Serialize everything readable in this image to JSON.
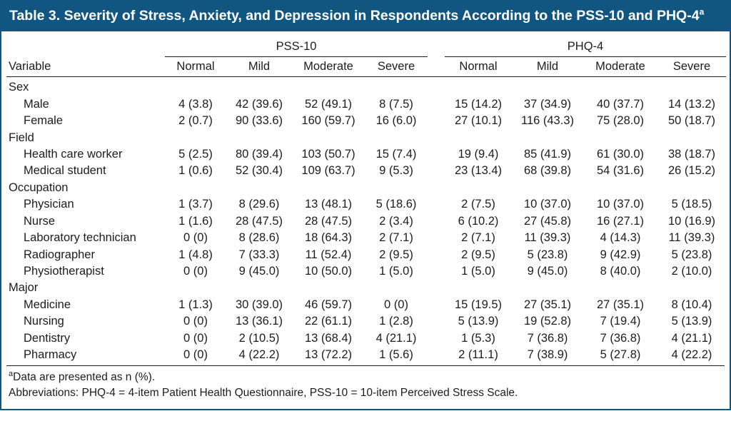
{
  "title": "Table 3. Severity of Stress, Anxiety, and Depression in Respondents According to the PSS-10 and PHQ-4",
  "title_superscript": "a",
  "table": {
    "group_headers": [
      "PSS-10",
      "PHQ-4"
    ],
    "variable_header": "Variable",
    "sub_headers": [
      "Normal",
      "Mild",
      "Moderate",
      "Severe",
      "Normal",
      "Mild",
      "Moderate",
      "Severe"
    ],
    "sections": [
      {
        "label": "Sex",
        "rows": [
          {
            "label": "Male",
            "values": [
              "4 (3.8)",
              "42 (39.6)",
              "52 (49.1)",
              "8 (7.5)",
              "15 (14.2)",
              "37 (34.9)",
              "40 (37.7)",
              "14 (13.2)"
            ]
          },
          {
            "label": "Female",
            "values": [
              "2 (0.7)",
              "90 (33.6)",
              "160 (59.7)",
              "16 (6.0)",
              "27 (10.1)",
              "116 (43.3)",
              "75 (28.0)",
              "50 (18.7)"
            ]
          }
        ]
      },
      {
        "label": "Field",
        "rows": [
          {
            "label": "Health care worker",
            "values": [
              "5 (2.5)",
              "80 (39.4)",
              "103 (50.7)",
              "15 (7.4)",
              "19 (9.4)",
              "85 (41.9)",
              "61 (30.0)",
              "38 (18.7)"
            ]
          },
          {
            "label": "Medical student",
            "values": [
              "1 (0.6)",
              "52 (30.4)",
              "109 (63.7)",
              "9 (5.3)",
              "23 (13.4)",
              "68 (39.8)",
              "54 (31.6)",
              "26 (15.2)"
            ]
          }
        ]
      },
      {
        "label": "Occupation",
        "rows": [
          {
            "label": "Physician",
            "values": [
              "1 (3.7)",
              "8 (29.6)",
              "13 (48.1)",
              "5 (18.6)",
              "2 (7.5)",
              "10 (37.0)",
              "10 (37.0)",
              "5 (18.5)"
            ]
          },
          {
            "label": "Nurse",
            "values": [
              "1 (1.6)",
              "28 (47.5)",
              "28 (47.5)",
              "2 (3.4)",
              "6 (10.2)",
              "27 (45.8)",
              "16 (27.1)",
              "10 (16.9)"
            ]
          },
          {
            "label": "Laboratory technician",
            "values": [
              "0 (0)",
              "8 (28.6)",
              "18 (64.3)",
              "2 (7.1)",
              "2 (7.1)",
              "11 (39.3)",
              "4 (14.3)",
              "11 (39.3)"
            ]
          },
          {
            "label": "Radiographer",
            "values": [
              "1 (4.8)",
              "7 (33.3)",
              "11 (52.4)",
              "2 (9.5)",
              "2 (9.5)",
              "5 (23.8)",
              "9 (42.9)",
              "5 (23.8)"
            ]
          },
          {
            "label": "Physiotherapist",
            "values": [
              "0 (0)",
              "9 (45.0)",
              "10 (50.0)",
              "1 (5.0)",
              "1 (5.0)",
              "9 (45.0)",
              "8 (40.0)",
              "2 (10.0)"
            ]
          }
        ]
      },
      {
        "label": "Major",
        "rows": [
          {
            "label": "Medicine",
            "values": [
              "1 (1.3)",
              "30 (39.0)",
              "46 (59.7)",
              "0 (0)",
              "15 (19.5)",
              "27 (35.1)",
              "27 (35.1)",
              "8 (10.4)"
            ]
          },
          {
            "label": "Nursing",
            "values": [
              "0 (0)",
              "13 (36.1)",
              "22 (61.1)",
              "1 (2.8)",
              "5 (13.9)",
              "19 (52.8)",
              "7 (19.4)",
              "5 (13.9)"
            ]
          },
          {
            "label": "Dentistry",
            "values": [
              "0 (0)",
              "2 (10.5)",
              "13 (68.4)",
              "4 (21.1)",
              "1 (5.3)",
              "7 (36.8)",
              "7 (36.8)",
              "4 (21.1)"
            ]
          },
          {
            "label": "Pharmacy",
            "values": [
              "0 (0)",
              "4 (22.2)",
              "13 (72.2)",
              "1 (5.6)",
              "2 (11.1)",
              "7 (38.9)",
              "5 (27.8)",
              "4 (22.2)"
            ]
          }
        ]
      }
    ]
  },
  "footnotes": {
    "note_superscript": "a",
    "note_text": "Data are presented as n (%).",
    "abbreviations": "Abbreviations: PHQ-4 = 4-item Patient Health Questionnaire, PSS-10 = 10-item Perceived Stress Scale."
  },
  "colors": {
    "header_bg": "#105680",
    "border": "#105680",
    "rule": "#1c1c1c",
    "text": "#1c1c1c"
  }
}
